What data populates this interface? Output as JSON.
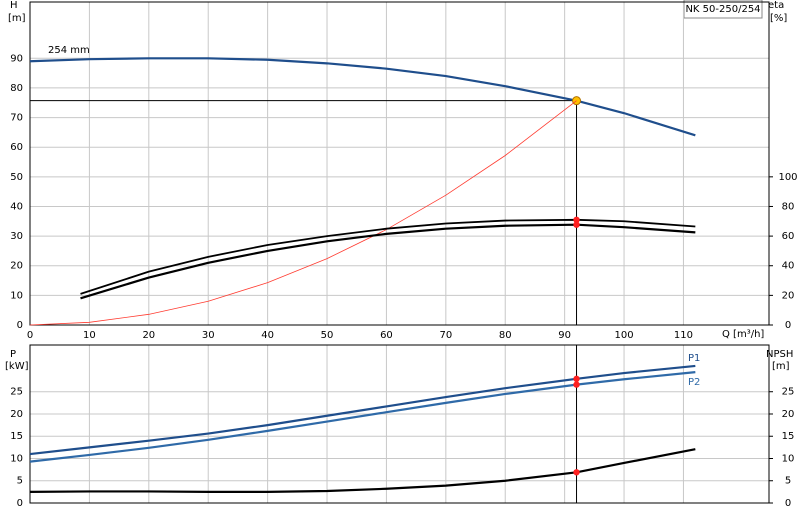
{
  "chart_data": [
    {
      "type": "line",
      "title": "NK 50-250/254",
      "ylabel": "H",
      "yunit": "[m]",
      "y2label": "eta",
      "y2unit": "[%]",
      "xlabel": "Q [m³/h]",
      "xlim": [
        0,
        124.4
      ],
      "xticks": [
        0,
        10,
        20,
        30,
        40,
        50,
        60,
        70,
        80,
        90,
        100,
        110
      ],
      "ylim": [
        0,
        109
      ],
      "yticks": [
        0,
        10,
        20,
        30,
        40,
        50,
        60,
        70,
        80,
        90
      ],
      "y2lim": [
        0,
        218
      ],
      "y2ticks": [
        0,
        20,
        40,
        60,
        80,
        100
      ],
      "grid": true,
      "duty_point": {
        "x": 92,
        "y": 75.7
      },
      "series": [
        {
          "name": "254 mm",
          "color": "#1f4e8c",
          "x": [
            0,
            10,
            20,
            30,
            40,
            50,
            60,
            70,
            80,
            92,
            100,
            112
          ],
          "values": [
            89,
            89.7,
            90,
            90,
            89.5,
            88.3,
            86.5,
            84,
            80.6,
            75.7,
            71.5,
            64
          ]
        },
        {
          "color": "#ff3b30",
          "x": [
            0,
            10,
            20,
            30,
            40,
            50,
            60,
            70,
            80,
            92
          ],
          "values": [
            0,
            0.9,
            3.6,
            8,
            14.3,
            22.4,
            32.2,
            43.8,
            57.2,
            75.7
          ]
        },
        {
          "color": "#000000",
          "axis": "y2",
          "x": [
            8.5,
            20,
            30,
            40,
            50,
            60,
            70,
            80,
            92,
            100,
            112
          ],
          "values": [
            21,
            36,
            46,
            54,
            60,
            65,
            68.5,
            70.5,
            71,
            70,
            66.5
          ]
        },
        {
          "color": "#000000",
          "axis": "y2",
          "x": [
            8.5,
            20,
            30,
            40,
            50,
            60,
            70,
            80,
            92,
            100,
            112
          ],
          "values": [
            18,
            32,
            42,
            50,
            56.5,
            61.5,
            65,
            67,
            67.7,
            66,
            62.5
          ]
        }
      ]
    },
    {
      "type": "line",
      "ylabel": "P",
      "yunit": "[kW]",
      "y2label": "NPSH",
      "y2unit": "[m]",
      "xlim": [
        0,
        124.4
      ],
      "ylim": [
        0,
        35.5
      ],
      "yticks": [
        0,
        5,
        10,
        15,
        20,
        25
      ],
      "y2lim": [
        0,
        35.5
      ],
      "y2ticks": [
        0,
        5,
        10,
        15,
        20,
        25
      ],
      "grid": true,
      "duty_point": {
        "x": 92
      },
      "series": [
        {
          "name": "P1",
          "color": "#1f4e8c",
          "x": [
            0,
            10,
            20,
            30,
            40,
            50,
            60,
            70,
            80,
            92,
            100,
            112
          ],
          "values": [
            11,
            12.5,
            14,
            15.6,
            17.5,
            19.6,
            21.7,
            23.8,
            25.8,
            27.9,
            29.2,
            30.8
          ]
        },
        {
          "name": "P2",
          "color": "#2f6aa8",
          "x": [
            0,
            10,
            20,
            30,
            40,
            50,
            60,
            70,
            80,
            92,
            100,
            112
          ],
          "values": [
            9.3,
            10.8,
            12.4,
            14.2,
            16.2,
            18.3,
            20.4,
            22.5,
            24.5,
            26.6,
            27.8,
            29.4
          ]
        },
        {
          "color": "#000000",
          "axis": "y2",
          "x": [
            0,
            10,
            20,
            30,
            40,
            50,
            60,
            70,
            80,
            92,
            100,
            112
          ],
          "values": [
            2.5,
            2.6,
            2.6,
            2.5,
            2.5,
            2.7,
            3.2,
            3.9,
            5,
            6.9,
            9,
            12.1
          ]
        }
      ]
    }
  ]
}
